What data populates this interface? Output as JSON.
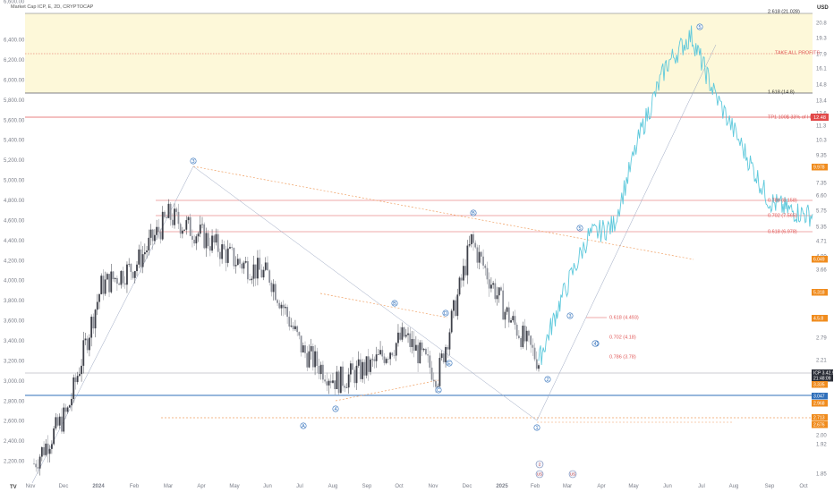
{
  "header": {
    "title": "Market Cap ICP, E, 2D, CRYPTOCAP",
    "currency": "USD"
  },
  "colors": {
    "candle_up": "#3e4049",
    "candle_down": "#8d9099",
    "projection": "#5ec9dc",
    "red_level": "#e05757",
    "blue_level": "#2f6fba",
    "orange_dashed": "#f0a063",
    "zone": "#fdf8d9",
    "label_orange": "#f08c1e",
    "label_red": "#e24a4a"
  },
  "axis": {
    "y_ticks": [
      "6,400.00",
      "6,200.00",
      "6,000.00",
      "5,800.00",
      "5,600.00",
      "5,400.00",
      "5,200.00",
      "5,000.00",
      "4,800.00",
      "4,600.00",
      "4,400.00",
      "4,200.00",
      "4,000.00",
      "3,800.00",
      "3,600.00",
      "3,400.00",
      "3,200.00",
      "3,000.00",
      "2,800.00",
      "2,600.00",
      "2,400.00",
      "2,200.00"
    ],
    "y_top_partial": "6,600.00",
    "x_ticks": [
      "Nov",
      "Dec",
      "2024",
      "Feb",
      "Mar",
      "Apr",
      "May",
      "Jun",
      "Jul",
      "Aug",
      "Sep",
      "Oct",
      "Nov",
      "Dec",
      "2025",
      "Feb",
      "Mar",
      "Apr",
      "May",
      "Jun",
      "Jul",
      "Aug",
      "Sep",
      "Oct"
    ],
    "right_ticks": [
      "20.8",
      "19.3",
      "17.9",
      "16.1",
      "14.8",
      "13.4",
      "12.6",
      "11.3",
      "10.3",
      "9.35",
      "8.62",
      "7.35",
      "6.60",
      "5.75",
      "5.35",
      "4.71",
      "4.00",
      "3.66",
      "2.79",
      "2.21",
      "2.00",
      "1.92",
      "1.85"
    ]
  },
  "levels": {
    "fib_2618": "2.618 (21.028)",
    "take_profits": "TAKE ALL PROFITS",
    "fib_1618": "1.618 (14.8)",
    "tp1": "TP1 100$ 33% of Holdings",
    "tp1_tag": "12.48",
    "fib_786_upper": "0.786 (8.158)",
    "fib_702_upper": "0.702 (7.565)",
    "fib_618_upper": "0.618 (6.978)",
    "fib_618_lower": "0.618 (4.493)",
    "fib_702_lower": "0.702 (4.18)",
    "fib_786_lower": "0.786 (3.78)"
  },
  "price_tags": [
    {
      "text": "9.978",
      "kind": "orange"
    },
    {
      "text": "6.049",
      "kind": "orange"
    },
    {
      "text": "5.318",
      "kind": "orange"
    },
    {
      "text": "4.5.8",
      "kind": "orange"
    },
    {
      "text": "ICP  3.42.9",
      "kind": "dark"
    },
    {
      "text": "21:48:09",
      "kind": "dark"
    },
    {
      "text": "3.335",
      "kind": "orange"
    },
    {
      "text": "3.047",
      "kind": "blue"
    },
    {
      "text": "2.968",
      "kind": "orange"
    },
    {
      "text": "2.713",
      "kind": "orange"
    },
    {
      "text": "2.676",
      "kind": "orange"
    }
  ],
  "wave_labels": [
    {
      "text": "3"
    },
    {
      "text": "4"
    },
    {
      "text": "A"
    },
    {
      "text": "B"
    },
    {
      "text": "C"
    },
    {
      "text": "D"
    },
    {
      "text": "E"
    },
    {
      "text": "B"
    },
    {
      "text": "C"
    },
    {
      "text": "5"
    },
    {
      "text": "1"
    },
    {
      "text": "2"
    },
    {
      "text": "3"
    },
    {
      "text": "4"
    },
    {
      "text": "5"
    }
  ],
  "events": [
    {
      "text": "2"
    },
    {
      "text": "US"
    },
    {
      "text": "US"
    }
  ],
  "footer": {
    "tv_logo": "TV"
  },
  "chart_data": {
    "type": "candlestick",
    "title": "Market Cap ICP, E, 2D, CRYPTOCAP",
    "left_axis_unit": "Market Cap",
    "right_axis_unit": "USD",
    "left_ylim": [
      2100,
      6650
    ],
    "x": [
      "Nov",
      "Dec",
      "2024",
      "Feb",
      "Mar",
      "Apr",
      "May",
      "Jun",
      "Jul",
      "Aug",
      "Sep",
      "Oct",
      "Nov",
      "Dec",
      "2025",
      "Feb",
      "Mar",
      "Apr",
      "May",
      "Jun",
      "Jul",
      "Aug",
      "Sep",
      "Oct"
    ],
    "historical_close_by_month": [
      2180,
      2700,
      3950,
      4150,
      4650,
      4450,
      4200,
      4050,
      3300,
      3000,
      3150,
      3450,
      3050,
      4400,
      3700,
      3200
    ],
    "projection_path": [
      [
        2025.09,
        3200
      ],
      [
        2025.16,
        3800
      ],
      [
        2025.25,
        4450
      ],
      [
        2025.33,
        4550
      ],
      [
        2025.42,
        5500
      ],
      [
        2025.5,
        6150
      ],
      [
        2025.58,
        6450
      ],
      [
        2025.65,
        5900
      ],
      [
        2025.75,
        5300
      ],
      [
        2025.83,
        4800
      ],
      [
        2025.9,
        4700
      ],
      [
        2025.97,
        4650
      ]
    ],
    "grid": false,
    "legend": "none"
  }
}
